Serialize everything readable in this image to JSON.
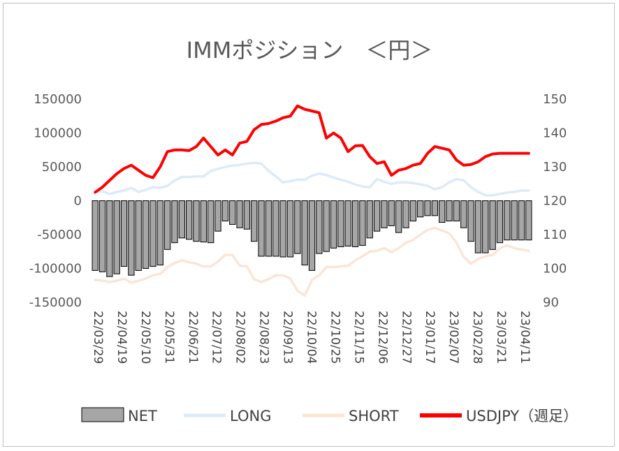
{
  "chart_data": {
    "type": "bar+line",
    "title": "IMMポジション　＜円＞",
    "xlabel": "",
    "ylabel": "",
    "y_left_lim": [
      -150000,
      150000
    ],
    "y_left_ticks": [
      "150000",
      "100000",
      "50000",
      "0",
      "-50000",
      "-100000",
      "-150000"
    ],
    "y_right_lim": [
      90,
      150
    ],
    "y_right_ticks": [
      "150",
      "140",
      "130",
      "120",
      "110",
      "100",
      "90"
    ],
    "x_tick_labels": [
      "22/03/29",
      "22/04/19",
      "22/05/10",
      "22/05/31",
      "22/06/21",
      "22/07/12",
      "22/08/02",
      "22/08/23",
      "22/09/13",
      "22/10/04",
      "22/10/25",
      "22/11/15",
      "22/12/06",
      "22/12/27",
      "23/01/17",
      "23/02/07",
      "23/02/28",
      "23/03/21",
      "23/04/11"
    ],
    "legend_position": "bottom",
    "series": [
      {
        "name": "NET",
        "type": "bar",
        "axis": "left",
        "color": "#a6a6a6",
        "values": [
          -103000,
          -105000,
          -112000,
          -108000,
          -97000,
          -110000,
          -103000,
          -100000,
          -97000,
          -95000,
          -72000,
          -62000,
          -55000,
          -57000,
          -60000,
          -61000,
          -62000,
          -45000,
          -30000,
          -35000,
          -40000,
          -42000,
          -60000,
          -82000,
          -82000,
          -82000,
          -83000,
          -83000,
          -78000,
          -95000,
          -103000,
          -78000,
          -75000,
          -70000,
          -68000,
          -67000,
          -68000,
          -66000,
          -55000,
          -45000,
          -40000,
          -37000,
          -47000,
          -40000,
          -30000,
          -24000,
          -22000,
          -22000,
          -32000,
          -30000,
          -30000,
          -40000,
          -60000,
          -77000,
          -77000,
          -72000,
          -62000,
          -58000,
          -58000,
          -58000,
          -58000
        ]
      },
      {
        "name": "LONG",
        "type": "line",
        "axis": "left",
        "color": "#ddebf7",
        "values": [
          13000,
          14000,
          10000,
          13000,
          15000,
          19000,
          13000,
          16000,
          20000,
          19000,
          22000,
          30000,
          35000,
          35000,
          36000,
          36000,
          44000,
          47000,
          50000,
          52000,
          53000,
          55000,
          56000,
          55000,
          44000,
          36000,
          27000,
          29000,
          31000,
          31000,
          37000,
          40000,
          38000,
          34000,
          31000,
          28000,
          24000,
          21000,
          20000,
          32000,
          28000,
          25000,
          27000,
          27000,
          26000,
          24000,
          22000,
          17000,
          20000,
          27000,
          32000,
          30000,
          20000,
          13000,
          8000,
          8000,
          10000,
          12000,
          13000,
          15000,
          15000
        ]
      },
      {
        "name": "SHORT",
        "type": "line",
        "axis": "left",
        "color": "#fbe5d6",
        "values": [
          -117000,
          -118000,
          -120000,
          -118000,
          -115000,
          -121000,
          -118000,
          -115000,
          -110000,
          -108000,
          -98000,
          -92000,
          -88000,
          -91000,
          -93000,
          -97000,
          -97000,
          -90000,
          -80000,
          -80000,
          -96000,
          -97000,
          -116000,
          -120000,
          -116000,
          -110000,
          -110000,
          -115000,
          -133000,
          -140000,
          -117000,
          -110000,
          -98000,
          -98000,
          -97000,
          -96000,
          -88000,
          -82000,
          -75000,
          -74000,
          -70000,
          -76000,
          -70000,
          -62000,
          -58000,
          -50000,
          -43000,
          -40000,
          -44000,
          -48000,
          -62000,
          -83000,
          -93000,
          -86000,
          -82000,
          -80000,
          -70000,
          -66000,
          -70000,
          -72000,
          -74000
        ]
      },
      {
        "name": "USDJPY（週足）",
        "type": "line",
        "axis": "right",
        "color": "#ff0000",
        "values": [
          122.5,
          124.0,
          126.0,
          128.0,
          129.5,
          130.5,
          129.0,
          127.5,
          126.8,
          130.0,
          134.5,
          135.0,
          135.0,
          134.8,
          136.0,
          138.5,
          136.0,
          133.5,
          135.0,
          133.5,
          137.0,
          137.5,
          141.0,
          142.5,
          142.8,
          143.5,
          144.5,
          145.0,
          148.0,
          147.0,
          146.5,
          146.0,
          138.5,
          140.0,
          138.5,
          134.5,
          136.2,
          136.3,
          133.0,
          131.0,
          131.5,
          127.5,
          129.0,
          129.5,
          130.5,
          131.0,
          134.0,
          136.0,
          135.5,
          135.0,
          132.0,
          130.5,
          130.7,
          131.5,
          133.0,
          133.8,
          134.0,
          134.0,
          134.0,
          134.0,
          134.0
        ]
      }
    ]
  }
}
